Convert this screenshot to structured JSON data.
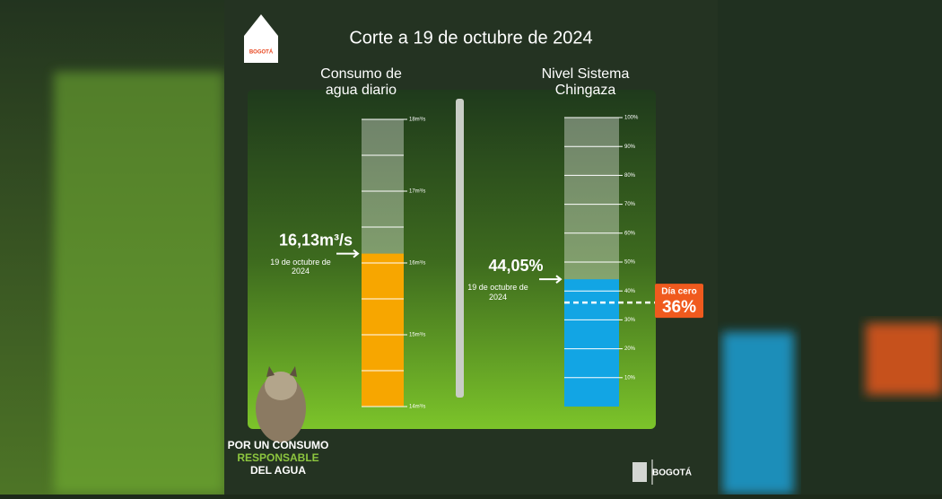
{
  "header": {
    "title": "Corte a 19 de octubre de 2024",
    "logo_text": "BOGOTÁ"
  },
  "chart_data": [
    {
      "type": "gauge",
      "title": "Consumo de agua diario",
      "values": [
        16.13
      ],
      "value_labels": [
        "16,13m³/s"
      ],
      "value_date": "19 de octubre de 2024",
      "color": "#f7a600",
      "ylim": [
        14,
        18
      ],
      "yticks": [
        {
          "value": 14,
          "label": "14m³/s"
        },
        {
          "value": 15,
          "label": "15m³/s"
        },
        {
          "value": 16,
          "label": "16m³/s"
        },
        {
          "value": 17,
          "label": "17m³/s"
        },
        {
          "value": 18,
          "label": "18m³/s"
        }
      ],
      "minor_yticks": [
        14.5,
        15.5,
        16.5,
        17.5
      ]
    },
    {
      "type": "gauge",
      "title": "Nivel Sistema Chingaza",
      "values": [
        44.05
      ],
      "value_labels": [
        "44,05%"
      ],
      "value_date": "19 de octubre de 2024",
      "color": "#12a5e4",
      "ylim": [
        0,
        100
      ],
      "yticks": [
        {
          "value": 10,
          "label": "10%"
        },
        {
          "value": 20,
          "label": "20%"
        },
        {
          "value": 30,
          "label": "30%"
        },
        {
          "value": 40,
          "label": "40%"
        },
        {
          "value": 50,
          "label": "50%"
        },
        {
          "value": 60,
          "label": "60%"
        },
        {
          "value": 70,
          "label": "70%"
        },
        {
          "value": 80,
          "label": "80%"
        },
        {
          "value": 90,
          "label": "90%"
        },
        {
          "value": 100,
          "label": "100%"
        }
      ],
      "threshold": {
        "label": "Día cero",
        "value": 36,
        "value_label": "36%",
        "color": "#f05a1e"
      }
    }
  ],
  "footer": {
    "line1": "POR UN CONSUMO",
    "line2": "RESPONSABLE",
    "line3": "DEL AGUA",
    "logo_text": "BOGOTÁ"
  }
}
